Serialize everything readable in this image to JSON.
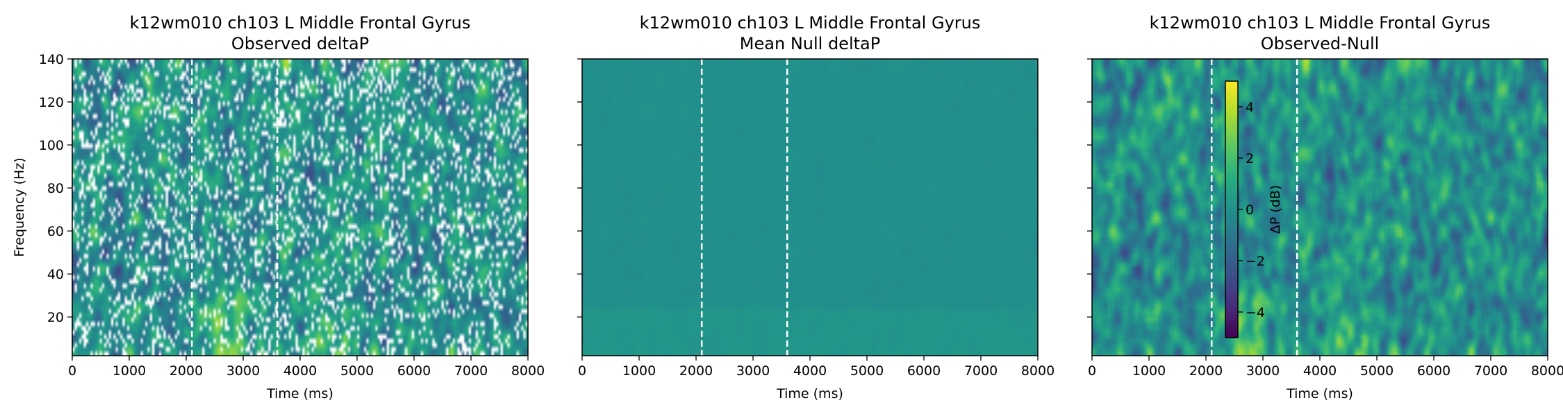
{
  "chart_data": [
    {
      "type": "heatmap",
      "title": "k12wm010 ch103 L Middle Frontal Gyrus",
      "subtitle": "Observed deltaP",
      "xlabel": "Time (ms)",
      "ylabel": "Frequency (Hz)",
      "xlim": [
        0,
        8000
      ],
      "ylim": [
        2,
        140
      ],
      "xticks": [
        0,
        1000,
        2000,
        3000,
        4000,
        5000,
        6000,
        7000,
        8000
      ],
      "yticks": [
        20,
        40,
        60,
        80,
        100,
        120,
        140
      ],
      "vlines": [
        2100,
        3600
      ],
      "colormap": "viridis",
      "value_range": [
        -5,
        5
      ],
      "masked_color": "#ffffff",
      "pattern": "observed masked"
    },
    {
      "type": "heatmap",
      "title": "k12wm010 ch103 L Middle Frontal Gyrus",
      "subtitle": "Mean Null deltaP",
      "xlabel": "Time (ms)",
      "ylabel": "",
      "xlim": [
        0,
        8000
      ],
      "ylim": [
        2,
        140
      ],
      "xticks": [
        0,
        1000,
        2000,
        3000,
        4000,
        5000,
        6000,
        7000,
        8000
      ],
      "yticks": [
        20,
        40,
        60,
        80,
        100,
        120,
        140
      ],
      "vlines": [
        2100,
        3600
      ],
      "colormap": "viridis",
      "value_range": [
        -5,
        5
      ],
      "pattern": "near zero"
    },
    {
      "type": "heatmap",
      "title": "k12wm010 ch103 L Middle Frontal Gyrus",
      "subtitle": "Observed-Null",
      "xlabel": "Time (ms)",
      "ylabel": "",
      "xlim": [
        0,
        8000
      ],
      "ylim": [
        2,
        140
      ],
      "xticks": [
        0,
        1000,
        2000,
        3000,
        4000,
        5000,
        6000,
        7000,
        8000
      ],
      "yticks": [
        20,
        40,
        60,
        80,
        100,
        120,
        140
      ],
      "vlines": [
        2100,
        3600
      ],
      "colormap": "viridis",
      "value_range": [
        -5,
        5
      ],
      "pattern": "observed",
      "colorbar": {
        "label": "ΔP (dB)",
        "range": [
          -5,
          5
        ],
        "ticks": [
          4,
          2,
          0,
          -2,
          -4
        ],
        "tick_labels": [
          "4",
          "2",
          "0",
          "−2",
          "−4"
        ],
        "placement": "inside-top-left"
      }
    }
  ]
}
